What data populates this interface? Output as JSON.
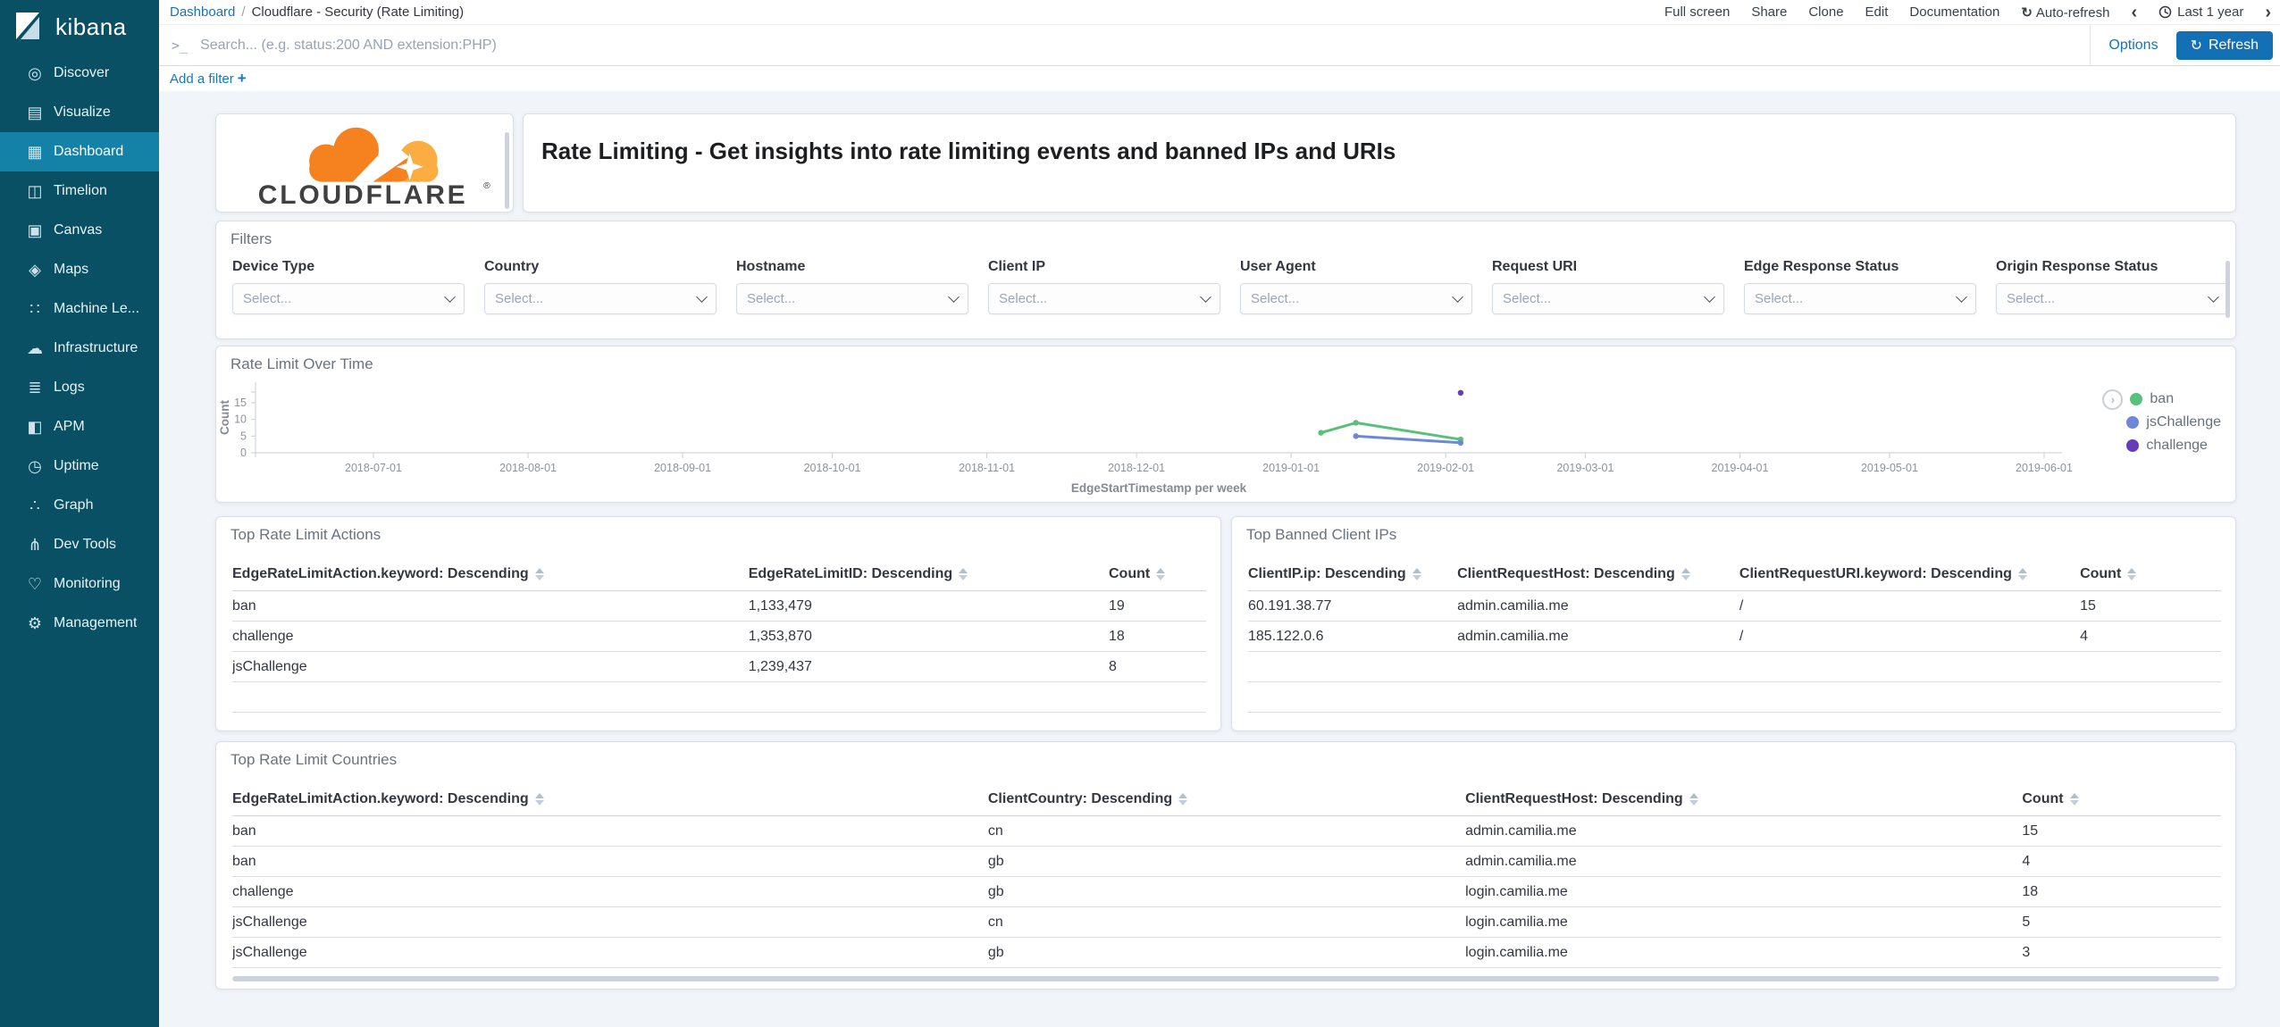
{
  "sidebar": {
    "logo_text": "kibana",
    "items": [
      {
        "label": "Discover",
        "icon": "compass-icon",
        "active": false
      },
      {
        "label": "Visualize",
        "icon": "visualize-chart-icon",
        "active": false
      },
      {
        "label": "Dashboard",
        "icon": "dashboard-grid-icon",
        "active": true
      },
      {
        "label": "Timelion",
        "icon": "timelion-icon",
        "active": false
      },
      {
        "label": "Canvas",
        "icon": "canvas-icon",
        "active": false
      },
      {
        "label": "Maps",
        "icon": "maps-pin-icon",
        "active": false
      },
      {
        "label": "Machine Le...",
        "icon": "machine-learning-icon",
        "active": false
      },
      {
        "label": "Infrastructure",
        "icon": "infrastructure-cloud-icon",
        "active": false
      },
      {
        "label": "Logs",
        "icon": "logs-icon",
        "active": false
      },
      {
        "label": "APM",
        "icon": "apm-icon",
        "active": false
      },
      {
        "label": "Uptime",
        "icon": "uptime-clock-icon",
        "active": false
      },
      {
        "label": "Graph",
        "icon": "graph-nodes-icon",
        "active": false
      },
      {
        "label": "Dev Tools",
        "icon": "dev-tools-wrench-icon",
        "active": false
      },
      {
        "label": "Monitoring",
        "icon": "monitoring-heart-icon",
        "active": false
      },
      {
        "label": "Management",
        "icon": "management-gear-icon",
        "active": false
      }
    ]
  },
  "topbar": {
    "breadcrumb": {
      "root": "Dashboard",
      "separator": "/",
      "current": "Cloudflare - Security (Rate Limiting)"
    },
    "menu": [
      "Full screen",
      "Share",
      "Clone",
      "Edit",
      "Documentation"
    ],
    "auto_refresh_label": "Auto-refresh",
    "time_range_label": "Last 1 year",
    "prev_chevron": "‹",
    "next_chevron": "›",
    "auto_refresh_glyph": "↻"
  },
  "search": {
    "prompt": ">_",
    "placeholder": "Search... (e.g. status:200 AND extension:PHP)",
    "options_label": "Options",
    "refresh_label": "Refresh",
    "refresh_glyph": "↻"
  },
  "filter_bar": {
    "add_filter_label": "Add a filter",
    "plus_sign": "+"
  },
  "branding": {
    "cloudflare_wordmark": "CLOUDFLARE",
    "registered_mark": "®",
    "cloud_primary": "#f6821f",
    "cloud_secondary": "#fbad41",
    "wordmark_color": "#404041"
  },
  "header_panel": {
    "title": "Rate Limiting - Get insights into rate limiting events and banned IPs and URIs"
  },
  "filters_panel": {
    "title": "Filters",
    "select_placeholder": "Select...",
    "fields": [
      "Device Type",
      "Country",
      "Hostname",
      "Client IP",
      "User Agent",
      "Request URI",
      "Edge Response Status",
      "Origin Response Status"
    ]
  },
  "chart_panel": {
    "title": "Rate Limit Over Time"
  },
  "chart_data": {
    "type": "line",
    "title": "Rate Limit Over Time",
    "xlabel": "EdgeStartTimestamp per week",
    "ylabel": "Count",
    "ylim": [
      0,
      18.75
    ],
    "yticks": [
      0,
      5,
      10,
      15
    ],
    "xticks": [
      "2018-07-01",
      "2018-08-01",
      "2018-09-01",
      "2018-10-01",
      "2018-11-01",
      "2018-12-01",
      "2019-01-01",
      "2019-02-01",
      "2019-03-01",
      "2019-04-01",
      "2019-05-01",
      "2019-06-01"
    ],
    "grid": false,
    "legend_position": "right",
    "series": [
      {
        "name": "ban",
        "color": "#57c17b",
        "points": [
          {
            "x": "2019-01-07",
            "y": 6
          },
          {
            "x": "2019-01-14",
            "y": 9
          },
          {
            "x": "2019-02-04",
            "y": 4
          }
        ]
      },
      {
        "name": "jsChallenge",
        "color": "#6f87d8",
        "points": [
          {
            "x": "2019-01-14",
            "y": 5
          },
          {
            "x": "2019-02-04",
            "y": 3
          }
        ]
      },
      {
        "name": "challenge",
        "color": "#663db8",
        "points": [
          {
            "x": "2019-02-04",
            "y": 18
          }
        ]
      }
    ]
  },
  "tables": {
    "actions": {
      "title": "Top Rate Limit Actions",
      "columns": [
        "EdgeRateLimitAction.keyword: Descending",
        "EdgeRateLimitID: Descending",
        "Count"
      ],
      "rows": [
        [
          "ban",
          "1,133,479",
          "19"
        ],
        [
          "challenge",
          "1,353,870",
          "18"
        ],
        [
          "jsChallenge",
          "1,239,437",
          "8"
        ]
      ]
    },
    "banned_ips": {
      "title": "Top Banned Client IPs",
      "columns": [
        "ClientIP.ip: Descending",
        "ClientRequestHost: Descending",
        "ClientRequestURI.keyword: Descending",
        "Count"
      ],
      "rows": [
        [
          "60.191.38.77",
          "admin.camilia.me",
          "/",
          "15"
        ],
        [
          "185.122.0.6",
          "admin.camilia.me",
          "/",
          "4"
        ]
      ]
    },
    "countries": {
      "title": "Top Rate Limit Countries",
      "columns": [
        "EdgeRateLimitAction.keyword: Descending",
        "ClientCountry: Descending",
        "ClientRequestHost: Descending",
        "Count"
      ],
      "rows": [
        [
          "ban",
          "cn",
          "admin.camilia.me",
          "15"
        ],
        [
          "ban",
          "gb",
          "admin.camilia.me",
          "4"
        ],
        [
          "challenge",
          "gb",
          "login.camilia.me",
          "18"
        ],
        [
          "jsChallenge",
          "cn",
          "login.camilia.me",
          "5"
        ],
        [
          "jsChallenge",
          "gb",
          "login.camilia.me",
          "3"
        ]
      ]
    }
  },
  "colors": {
    "sidebar_bg": "#0a5064",
    "sidebar_active_bg": "#1482a6",
    "link_blue": "#1873b8",
    "button_blue": "#1470b4",
    "panel_border": "#d8dfe9",
    "series_ban": "#57c17b",
    "series_jschallenge": "#6f87d8",
    "series_challenge": "#663db8"
  }
}
